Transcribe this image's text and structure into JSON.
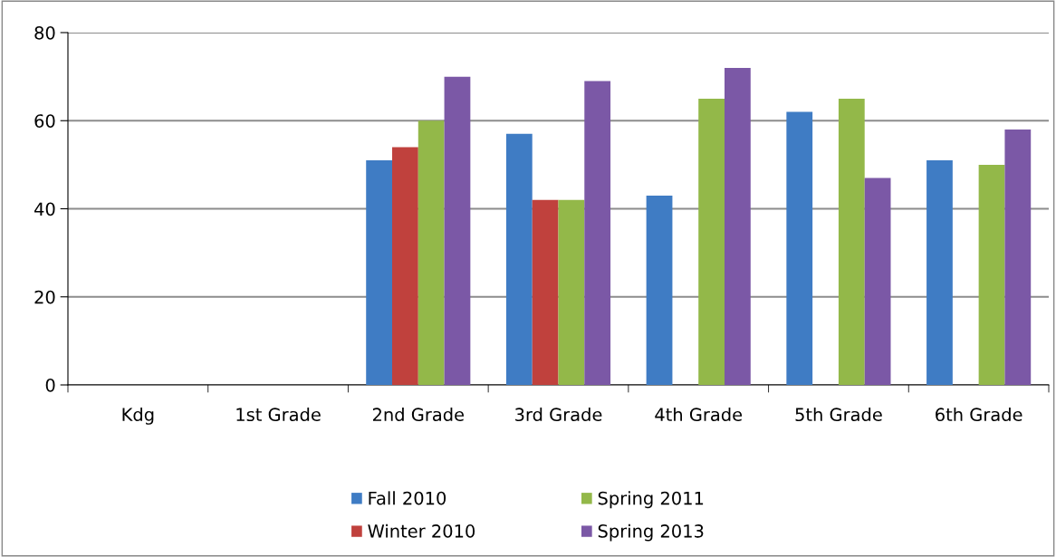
{
  "chart_data": {
    "type": "bar",
    "categories": [
      "Kdg",
      "1st Grade",
      "2nd Grade",
      "3rd Grade",
      "4th Grade",
      "5th Grade",
      "6th Grade"
    ],
    "series": [
      {
        "name": "Fall 2010",
        "color": "#3f7cc4",
        "values": [
          null,
          null,
          51,
          57,
          43,
          62,
          51
        ]
      },
      {
        "name": "Winter 2010",
        "color": "#c0413d",
        "values": [
          null,
          null,
          54,
          42,
          null,
          null,
          null
        ]
      },
      {
        "name": "Spring 2011",
        "color": "#93b849",
        "values": [
          null,
          null,
          60,
          42,
          65,
          65,
          50
        ]
      },
      {
        "name": "Spring 2013",
        "color": "#7b58a6",
        "values": [
          null,
          null,
          70,
          69,
          72,
          47,
          58
        ]
      }
    ],
    "ylim": [
      0,
      80
    ],
    "yticks": [
      0,
      20,
      40,
      60,
      80
    ],
    "grid": "y",
    "legend": "bottom"
  }
}
